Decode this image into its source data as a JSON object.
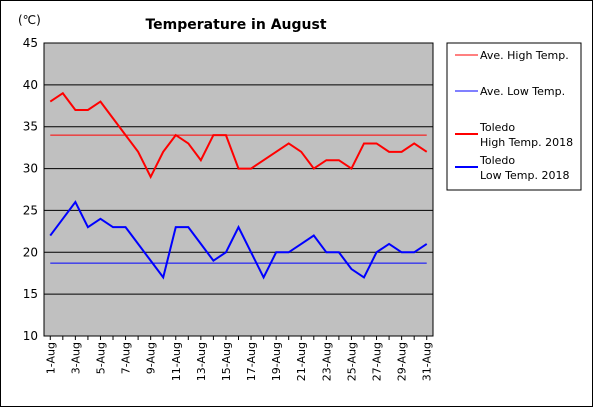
{
  "chart_data": {
    "type": "line",
    "title": "Temperature in August",
    "unit_label": "(℃)",
    "ylim": [
      10,
      45
    ],
    "yticks": [
      10,
      15,
      20,
      25,
      30,
      35,
      40,
      45
    ],
    "grid": true,
    "legend_position": "right",
    "days": [
      "1-Aug",
      "2-Aug",
      "3-Aug",
      "4-Aug",
      "5-Aug",
      "6-Aug",
      "7-Aug",
      "8-Aug",
      "9-Aug",
      "10-Aug",
      "11-Aug",
      "12-Aug",
      "13-Aug",
      "14-Aug",
      "15-Aug",
      "16-Aug",
      "17-Aug",
      "18-Aug",
      "19-Aug",
      "20-Aug",
      "21-Aug",
      "22-Aug",
      "23-Aug",
      "24-Aug",
      "25-Aug",
      "26-Aug",
      "27-Aug",
      "28-Aug",
      "29-Aug",
      "30-Aug",
      "31-Aug"
    ],
    "xtick_labels": [
      "1-Aug",
      "3-Aug",
      "5-Aug",
      "7-Aug",
      "9-Aug",
      "11-Aug",
      "13-Aug",
      "15-Aug",
      "17-Aug",
      "19-Aug",
      "21-Aug",
      "23-Aug",
      "25-Aug",
      "27-Aug",
      "29-Aug",
      "31-Aug"
    ],
    "series": [
      {
        "name": "Ave. High Temp.",
        "color": "#ff0000",
        "style": "thin",
        "values": [
          34,
          34,
          34,
          34,
          34,
          34,
          34,
          34,
          34,
          34,
          34,
          34,
          34,
          34,
          34,
          34,
          34,
          34,
          34,
          34,
          34,
          34,
          34,
          34,
          34,
          34,
          34,
          34,
          34,
          34,
          34
        ]
      },
      {
        "name": "Ave. Low Temp.",
        "color": "#0000ff",
        "style": "thin",
        "values": [
          18.7,
          18.7,
          18.7,
          18.7,
          18.7,
          18.7,
          18.7,
          18.7,
          18.7,
          18.7,
          18.7,
          18.7,
          18.7,
          18.7,
          18.7,
          18.7,
          18.7,
          18.7,
          18.7,
          18.7,
          18.7,
          18.7,
          18.7,
          18.7,
          18.7,
          18.7,
          18.7,
          18.7,
          18.7,
          18.7,
          18.7
        ]
      },
      {
        "name": "Toledo\nHigh Temp. 2018",
        "color": "#ff0000",
        "style": "thick",
        "values": [
          38,
          39,
          37,
          37,
          38,
          36,
          34,
          32,
          29,
          32,
          34,
          33,
          31,
          34,
          34,
          30,
          30,
          31,
          32,
          33,
          32,
          30,
          31,
          31,
          30,
          33,
          33,
          32,
          32,
          33,
          32
        ]
      },
      {
        "name": "Toledo\nLow Temp. 2018",
        "color": "#0000ff",
        "style": "thick",
        "values": [
          22,
          24,
          26,
          23,
          24,
          23,
          23,
          21,
          19,
          17,
          23,
          23,
          21,
          19,
          20,
          23,
          20,
          17,
          20,
          20,
          21,
          22,
          20,
          20,
          18,
          17,
          20,
          21,
          20,
          20,
          21
        ]
      }
    ]
  }
}
